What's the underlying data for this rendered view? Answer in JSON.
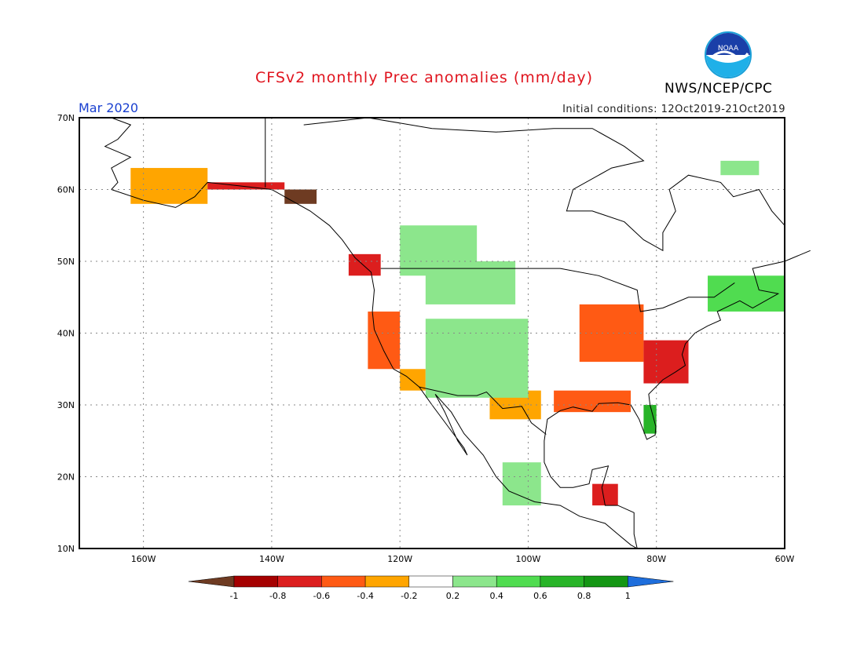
{
  "header": {
    "title": "CFSv2 monthly Prec anomalies (mm/day)",
    "month": "Mar 2020",
    "initial_conditions": "Initial conditions: 12Oct2019-21Oct2019",
    "agency": "NWS/NCEP/CPC",
    "logo_text": "NOAA"
  },
  "axes": {
    "lat_labels": [
      "70N",
      "60N",
      "50N",
      "40N",
      "30N",
      "20N",
      "10N"
    ],
    "lon_labels": [
      "160W",
      "140W",
      "120W",
      "100W",
      "80W",
      "60W"
    ]
  },
  "colorbar": {
    "ticks": [
      "-1",
      "-0.8",
      "-0.6",
      "-0.4",
      "-0.2",
      "0.2",
      "0.4",
      "0.6",
      "0.8",
      "1"
    ],
    "colors": [
      "#6e3b22",
      "#a50000",
      "#dc1e1e",
      "#ff5a14",
      "#ffa500",
      "#ffffff",
      "#8ce68c",
      "#50dc50",
      "#28b428",
      "#149614",
      "#1e6edc"
    ]
  },
  "chart_data": {
    "type": "heatmap",
    "variable": "Precipitation anomaly",
    "units": "mm/day",
    "lat_range": [
      10,
      70
    ],
    "lon_range": [
      -170,
      -60
    ],
    "color_levels": [
      -1,
      -0.8,
      -0.6,
      -0.4,
      -0.2,
      0.2,
      0.4,
      0.6,
      0.8,
      1
    ],
    "anomaly_regions": [
      {
        "region": "Alaska southwest coast",
        "lat": [
          58,
          63
        ],
        "lon": [
          -162,
          -150
        ],
        "value": -0.4
      },
      {
        "region": "Gulf of Alaska coast",
        "lat": [
          60,
          61
        ],
        "lon": [
          -150,
          -138
        ],
        "value": -0.8
      },
      {
        "region": "Alaska panhandle",
        "lat": [
          58,
          60
        ],
        "lon": [
          -138,
          -133
        ],
        "value": -1.0
      },
      {
        "region": "British Columbia coast",
        "lat": [
          48,
          51
        ],
        "lon": [
          -128,
          -123
        ],
        "value": -0.8
      },
      {
        "region": "California coast",
        "lat": [
          35,
          43
        ],
        "lon": [
          -125,
          -120
        ],
        "value": -0.6
      },
      {
        "region": "Southern California",
        "lat": [
          32,
          35
        ],
        "lon": [
          -120,
          -116
        ],
        "value": -0.4
      },
      {
        "region": "Ohio Valley / Midwest",
        "lat": [
          36,
          44
        ],
        "lon": [
          -92,
          -82
        ],
        "value": -0.6
      },
      {
        "region": "Southern Appalachians / Carolinas",
        "lat": [
          33,
          39
        ],
        "lon": [
          -82,
          -75
        ],
        "value": -0.8
      },
      {
        "region": "Louisiana / Gulf Coast",
        "lat": [
          29,
          32
        ],
        "lon": [
          -96,
          -84
        ],
        "value": -0.6
      },
      {
        "region": "Northern Mexico",
        "lat": [
          28,
          32
        ],
        "lon": [
          -106,
          -98
        ],
        "value": -0.4
      },
      {
        "region": "Central America",
        "lat": [
          16,
          19
        ],
        "lon": [
          -90,
          -86
        ],
        "value": -0.8
      },
      {
        "region": "Western Canada",
        "lat": [
          48,
          55
        ],
        "lon": [
          -120,
          -108
        ],
        "value": 0.2
      },
      {
        "region": "Northern Rockies",
        "lat": [
          44,
          50
        ],
        "lon": [
          -116,
          -102
        ],
        "value": 0.2
      },
      {
        "region": "Great Basin / Southwest",
        "lat": [
          31,
          42
        ],
        "lon": [
          -116,
          -100
        ],
        "value": 0.2
      },
      {
        "region": "Florida peninsula",
        "lat": [
          26,
          30
        ],
        "lon": [
          -82,
          -80
        ],
        "value": 0.6
      },
      {
        "region": "Maritime Canada",
        "lat": [
          43,
          48
        ],
        "lon": [
          -72,
          -60
        ],
        "value": 0.4
      },
      {
        "region": "Labrador",
        "lat": [
          62,
          64
        ],
        "lon": [
          -70,
          -64
        ],
        "value": 0.2
      },
      {
        "region": "Western Mexico",
        "lat": [
          16,
          22
        ],
        "lon": [
          -104,
          -98
        ],
        "value": 0.2
      }
    ]
  }
}
